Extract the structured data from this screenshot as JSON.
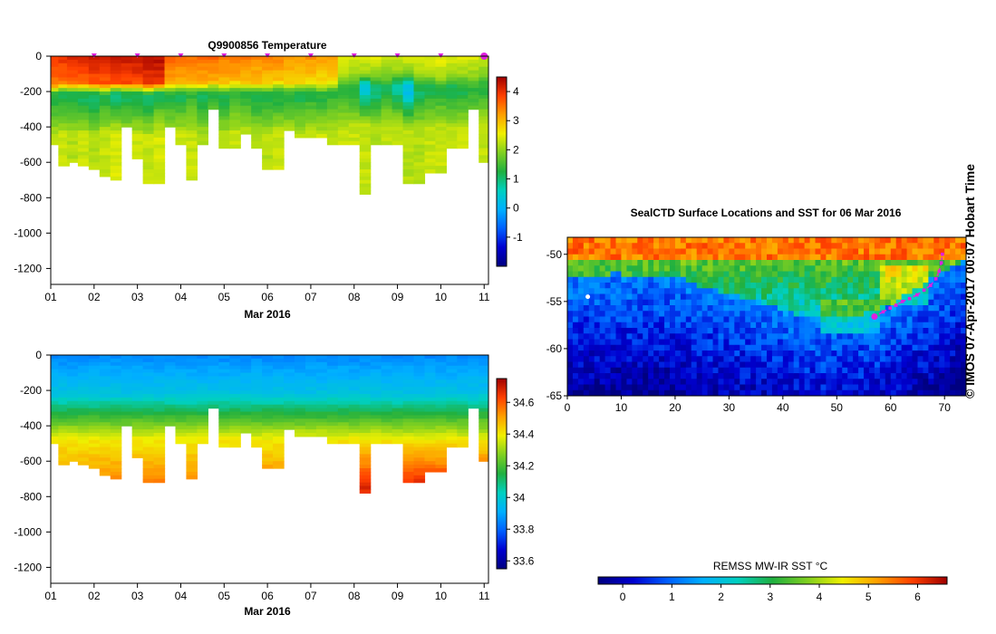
{
  "credit": "© IMOS 07-Apr-2017 00:07 Hobart Time",
  "chart_data": [
    {
      "type": "heatmap",
      "name": "temperature-section",
      "title": "Q9900856  Temperature",
      "xlabel": "Mar 2016",
      "ylabel": "",
      "xlim": [
        1,
        11.1
      ],
      "ylim": [
        -1290,
        0
      ],
      "x_ticks": [
        1,
        2,
        3,
        4,
        5,
        6,
        7,
        8,
        9,
        10,
        11
      ],
      "x_tick_labels": [
        "01",
        "02",
        "03",
        "04",
        "05",
        "06",
        "07",
        "08",
        "09",
        "10",
        "11"
      ],
      "y_ticks": [
        0,
        -200,
        -400,
        -600,
        -800,
        -1000,
        -1200
      ],
      "y_tick_labels": [
        "0",
        "-200",
        "-400",
        "-600",
        "-800",
        "-1000",
        "-1200"
      ],
      "colorbar": {
        "min": -2,
        "max": 4.5,
        "ticks": [
          -1,
          0,
          1,
          2,
          3,
          4
        ],
        "tick_labels": [
          "-1",
          "0",
          "1",
          "2",
          "3",
          "4"
        ],
        "stops": [
          "#000080",
          "#0000d0",
          "#0060ff",
          "#00b0ff",
          "#00d0c0",
          "#20b040",
          "#80d020",
          "#f0f000",
          "#ffa000",
          "#ff4000",
          "#a00000"
        ]
      },
      "marker_days": [
        2,
        3,
        4,
        5,
        6,
        7,
        8,
        9,
        10,
        11
      ],
      "marker_color": "#e020e0",
      "profiles": [
        {
          "t": 1.1,
          "bottom": -500,
          "thermo": -160,
          "cold": -250,
          "surf": 4.0,
          "min": 1.2,
          "deep": 2.2
        },
        {
          "t": 1.3,
          "bottom": -620,
          "thermo": -150,
          "cold": -240,
          "surf": 4.0,
          "min": 1.1,
          "deep": 2.3
        },
        {
          "t": 1.5,
          "bottom": -600,
          "thermo": -150,
          "cold": -250,
          "surf": 4.1,
          "min": 1.2,
          "deep": 2.2
        },
        {
          "t": 1.75,
          "bottom": -620,
          "thermo": -150,
          "cold": -250,
          "surf": 4.1,
          "min": 1.1,
          "deep": 2.3
        },
        {
          "t": 2.0,
          "bottom": -640,
          "thermo": -150,
          "cold": -260,
          "surf": 4.2,
          "min": 1.0,
          "deep": 2.2
        },
        {
          "t": 2.25,
          "bottom": -670,
          "thermo": -160,
          "cold": -250,
          "surf": 4.2,
          "min": 1.2,
          "deep": 2.3
        },
        {
          "t": 2.5,
          "bottom": -700,
          "thermo": -150,
          "cold": -240,
          "surf": 4.3,
          "min": 1.0,
          "deep": 2.4
        },
        {
          "t": 2.75,
          "bottom": -390,
          "thermo": -150,
          "cold": -250,
          "surf": 4.3,
          "min": 1.2,
          "deep": 2.2
        },
        {
          "t": 3.0,
          "bottom": -580,
          "thermo": -150,
          "cold": -250,
          "surf": 4.3,
          "min": 1.1,
          "deep": 2.3
        },
        {
          "t": 3.25,
          "bottom": -720,
          "thermo": -160,
          "cold": -260,
          "surf": 4.4,
          "min": 1.0,
          "deep": 2.3
        },
        {
          "t": 3.5,
          "bottom": -720,
          "thermo": -150,
          "cold": -240,
          "surf": 4.4,
          "min": 1.2,
          "deep": 2.4
        },
        {
          "t": 3.75,
          "bottom": -400,
          "thermo": -150,
          "cold": -250,
          "surf": 3.6,
          "min": 1.3,
          "deep": 2.2
        },
        {
          "t": 4.0,
          "bottom": -490,
          "thermo": -150,
          "cold": -250,
          "surf": 3.6,
          "min": 1.2,
          "deep": 2.3
        },
        {
          "t": 4.25,
          "bottom": -700,
          "thermo": -150,
          "cold": -240,
          "surf": 3.5,
          "min": 1.4,
          "deep": 2.3
        },
        {
          "t": 4.5,
          "bottom": -490,
          "thermo": -150,
          "cold": -250,
          "surf": 3.6,
          "min": 1.1,
          "deep": 2.2
        },
        {
          "t": 4.75,
          "bottom": -300,
          "thermo": -140,
          "cold": -240,
          "surf": 3.6,
          "min": 1.3,
          "deep": 2.3
        },
        {
          "t": 5.0,
          "bottom": -510,
          "thermo": -150,
          "cold": -250,
          "surf": 3.5,
          "min": 1.2,
          "deep": 2.2
        },
        {
          "t": 5.25,
          "bottom": -510,
          "thermo": -140,
          "cold": -240,
          "surf": 3.5,
          "min": 1.4,
          "deep": 2.3
        },
        {
          "t": 5.5,
          "bottom": -440,
          "thermo": -150,
          "cold": -240,
          "surf": 3.5,
          "min": 1.3,
          "deep": 2.3
        },
        {
          "t": 5.75,
          "bottom": -520,
          "thermo": -150,
          "cold": -250,
          "surf": 3.4,
          "min": 1.2,
          "deep": 2.2
        },
        {
          "t": 6.0,
          "bottom": -630,
          "thermo": -150,
          "cold": -250,
          "surf": 3.4,
          "min": 1.3,
          "deep": 2.2
        },
        {
          "t": 6.25,
          "bottom": -630,
          "thermo": -140,
          "cold": -240,
          "surf": 3.4,
          "min": 1.2,
          "deep": 2.3
        },
        {
          "t": 6.5,
          "bottom": -420,
          "thermo": -150,
          "cold": -250,
          "surf": 3.3,
          "min": 1.3,
          "deep": 2.3
        },
        {
          "t": 6.75,
          "bottom": -450,
          "thermo": -150,
          "cold": -240,
          "surf": 3.3,
          "min": 1.2,
          "deep": 2.2
        },
        {
          "t": 7.0,
          "bottom": -450,
          "thermo": -140,
          "cold": -240,
          "surf": 3.3,
          "min": 1.3,
          "deep": 2.3
        },
        {
          "t": 7.25,
          "bottom": -460,
          "thermo": -150,
          "cold": -250,
          "surf": 3.2,
          "min": 1.3,
          "deep": 2.3
        },
        {
          "t": 7.5,
          "bottom": -490,
          "thermo": -140,
          "cold": -240,
          "surf": 3.2,
          "min": 1.4,
          "deep": 2.2
        },
        {
          "t": 7.75,
          "bottom": -490,
          "thermo": -110,
          "cold": -220,
          "surf": 2.6,
          "min": 1.3,
          "deep": 2.3
        },
        {
          "t": 8.0,
          "bottom": -490,
          "thermo": -110,
          "cold": -210,
          "surf": 2.5,
          "min": 1.2,
          "deep": 2.3
        },
        {
          "t": 8.25,
          "bottom": -770,
          "thermo": -100,
          "cold": -200,
          "surf": 2.5,
          "min": 0.4,
          "deep": 2.3
        },
        {
          "t": 8.5,
          "bottom": -490,
          "thermo": -110,
          "cold": -220,
          "surf": 2.5,
          "min": 0.9,
          "deep": 2.2
        },
        {
          "t": 8.75,
          "bottom": -490,
          "thermo": -110,
          "cold": -210,
          "surf": 2.4,
          "min": 1.2,
          "deep": 2.3
        },
        {
          "t": 9.0,
          "bottom": -490,
          "thermo": -100,
          "cold": -200,
          "surf": 2.4,
          "min": 0.8,
          "deep": 2.3
        },
        {
          "t": 9.25,
          "bottom": -720,
          "thermo": -100,
          "cold": -210,
          "surf": 2.4,
          "min": 0.2,
          "deep": 2.2
        },
        {
          "t": 9.5,
          "bottom": -720,
          "thermo": -110,
          "cold": -220,
          "surf": 2.5,
          "min": 1.1,
          "deep": 2.2
        },
        {
          "t": 9.75,
          "bottom": -650,
          "thermo": -110,
          "cold": -210,
          "surf": 2.5,
          "min": 1.2,
          "deep": 2.3
        },
        {
          "t": 10.0,
          "bottom": -650,
          "thermo": -120,
          "cold": -220,
          "surf": 2.6,
          "min": 1.3,
          "deep": 2.3
        },
        {
          "t": 10.25,
          "bottom": -510,
          "thermo": -110,
          "cold": -210,
          "surf": 2.5,
          "min": 1.1,
          "deep": 2.2
        },
        {
          "t": 10.5,
          "bottom": -510,
          "thermo": -110,
          "cold": -220,
          "surf": 2.5,
          "min": 1.2,
          "deep": 2.3
        },
        {
          "t": 10.75,
          "bottom": -290,
          "thermo": -110,
          "cold": -210,
          "surf": 2.5,
          "min": 1.4,
          "deep": 2.2
        },
        {
          "t": 11.0,
          "bottom": -600,
          "thermo": -100,
          "cold": -200,
          "surf": 2.4,
          "min": 1.3,
          "deep": 2.3
        }
      ]
    },
    {
      "type": "heatmap",
      "name": "salinity-section",
      "title": "",
      "xlabel": "Mar 2016",
      "ylabel": "",
      "xlim": [
        1,
        11.1
      ],
      "ylim": [
        -1290,
        0
      ],
      "x_ticks": [
        1,
        2,
        3,
        4,
        5,
        6,
        7,
        8,
        9,
        10,
        11
      ],
      "x_tick_labels": [
        "01",
        "02",
        "03",
        "04",
        "05",
        "06",
        "07",
        "08",
        "09",
        "10",
        "11"
      ],
      "y_ticks": [
        0,
        -200,
        -400,
        -600,
        -800,
        -1000,
        -1200
      ],
      "y_tick_labels": [
        "0",
        "-200",
        "-400",
        "-600",
        "-800",
        "-1000",
        "-1200"
      ],
      "colorbar": {
        "min": 33.55,
        "max": 34.75,
        "ticks": [
          33.6,
          33.8,
          34,
          34.2,
          34.4,
          34.6
        ],
        "tick_labels": [
          "33.6",
          "33.8",
          "34",
          "34.2",
          "34.4",
          "34.6"
        ],
        "stops": [
          "#000080",
          "#0000d0",
          "#0060ff",
          "#00b0ff",
          "#00d0c0",
          "#20b040",
          "#80d020",
          "#f0f000",
          "#ffa000",
          "#ff4000",
          "#a00000"
        ]
      },
      "surface_value": 33.85,
      "halocline_top": -220,
      "halocline_bottom": -480,
      "deep_value": 34.55
    },
    {
      "type": "scatter",
      "name": "sst-map",
      "title": "SealCTD Surface Locations and SST for 06 Mar 2016",
      "xlabel": "",
      "ylabel": "",
      "xlim": [
        0,
        74
      ],
      "ylim": [
        -65,
        -48.2
      ],
      "x_ticks": [
        0,
        10,
        20,
        30,
        40,
        50,
        60,
        70
      ],
      "x_tick_labels": [
        "0",
        "10",
        "20",
        "30",
        "40",
        "50",
        "60",
        "70"
      ],
      "y_ticks": [
        -50,
        -55,
        -60,
        -65
      ],
      "y_tick_labels": [
        "-50",
        "-55",
        "-60",
        "-65"
      ],
      "colorbar": {
        "label": "REMSS MW-IR SST °C",
        "min": -0.5,
        "max": 6.6,
        "ticks": [
          0,
          1,
          2,
          3,
          4,
          5,
          6
        ],
        "tick_labels": [
          "0",
          "1",
          "2",
          "3",
          "4",
          "5",
          "6"
        ],
        "stops": [
          "#000080",
          "#0000d0",
          "#0060ff",
          "#00b0ff",
          "#00d0c0",
          "#20b040",
          "#80d020",
          "#f0f000",
          "#ffa000",
          "#ff4000",
          "#a00000"
        ]
      },
      "track": {
        "color": "#e020e0",
        "points": [
          [
            57.0,
            -56.6
          ],
          [
            58.6,
            -56.1
          ],
          [
            59.9,
            -55.7
          ],
          [
            61.0,
            -55.4
          ],
          [
            62.2,
            -55.0
          ],
          [
            63.5,
            -54.7
          ],
          [
            64.9,
            -54.3
          ],
          [
            66.2,
            -53.8
          ],
          [
            67.4,
            -53.3
          ],
          [
            68.4,
            -52.6
          ],
          [
            69.0,
            -51.8
          ],
          [
            69.4,
            -50.9
          ],
          [
            69.6,
            -50.0
          ]
        ],
        "start": [
          57.0,
          -56.6
        ]
      },
      "white_point": [
        3.8,
        -54.5
      ]
    }
  ]
}
